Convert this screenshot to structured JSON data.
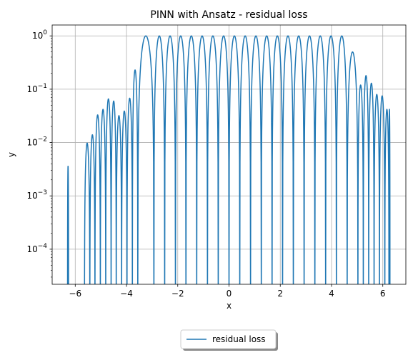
{
  "chart_data": {
    "type": "line",
    "title": "PINN with Ansatz - residual loss",
    "xlabel": "x",
    "ylabel": "y",
    "xlim": [
      -6.9,
      6.9
    ],
    "ylim": [
      2.2e-05,
      1.6
    ],
    "yscale": "log",
    "grid": true,
    "legend_placement": "bottom-center, below plot",
    "x_ticks": [
      -6,
      -4,
      -2,
      0,
      2,
      4,
      6
    ],
    "x_tick_labels": [
      "−6",
      "−4",
      "−2",
      "0",
      "2",
      "4",
      "6"
    ],
    "y_ticks": [
      0.0001,
      0.001,
      0.01,
      0.1,
      1
    ],
    "y_tick_labels": [
      {
        "base": "10",
        "exp": "−4"
      },
      {
        "base": "10",
        "exp": "−3"
      },
      {
        "base": "10",
        "exp": "−2"
      },
      {
        "base": "10",
        "exp": "−1"
      },
      {
        "base": "10",
        "exp": "0"
      }
    ],
    "series": [
      {
        "name": "residual loss",
        "color": "#1f77b4",
        "lobes": [
          {
            "start": -6.3,
            "end": -6.26,
            "peak": 0.0036
          },
          {
            "start": -5.64,
            "end": -5.43,
            "peak": 0.0098
          },
          {
            "start": -5.43,
            "end": -5.23,
            "peak": 0.014
          },
          {
            "start": -5.23,
            "end": -5.02,
            "peak": 0.033
          },
          {
            "start": -5.02,
            "end": -4.81,
            "peak": 0.042
          },
          {
            "start": -4.81,
            "end": -4.6,
            "peak": 0.066
          },
          {
            "start": -4.6,
            "end": -4.4,
            "peak": 0.06
          },
          {
            "start": -4.4,
            "end": -4.19,
            "peak": 0.032
          },
          {
            "start": -4.19,
            "end": -3.98,
            "peak": 0.039
          },
          {
            "start": -3.98,
            "end": -3.77,
            "peak": 0.068
          },
          {
            "start": -3.77,
            "end": -3.56,
            "peak": 0.23
          },
          {
            "start": -3.56,
            "end": -2.93,
            "peak": 1.0
          },
          {
            "start": -2.93,
            "end": -2.51,
            "peak": 1.0
          },
          {
            "start": -2.51,
            "end": -2.09,
            "peak": 1.0
          },
          {
            "start": -2.09,
            "end": -1.68,
            "peak": 1.0
          },
          {
            "start": -1.68,
            "end": -1.26,
            "peak": 1.0
          },
          {
            "start": -1.26,
            "end": -0.84,
            "peak": 1.0
          },
          {
            "start": -0.84,
            "end": -0.42,
            "peak": 1.0
          },
          {
            "start": -0.42,
            "end": 0.0,
            "peak": 1.0
          },
          {
            "start": 0.0,
            "end": 0.42,
            "peak": 1.0
          },
          {
            "start": 0.42,
            "end": 0.84,
            "peak": 1.0
          },
          {
            "start": 0.84,
            "end": 1.26,
            "peak": 1.0
          },
          {
            "start": 1.26,
            "end": 1.68,
            "peak": 1.0
          },
          {
            "start": 1.68,
            "end": 2.09,
            "peak": 1.0
          },
          {
            "start": 2.09,
            "end": 2.51,
            "peak": 1.0
          },
          {
            "start": 2.51,
            "end": 2.93,
            "peak": 1.0
          },
          {
            "start": 2.93,
            "end": 3.35,
            "peak": 1.0
          },
          {
            "start": 3.35,
            "end": 3.77,
            "peak": 1.0
          },
          {
            "start": 3.77,
            "end": 4.19,
            "peak": 1.0
          },
          {
            "start": 4.19,
            "end": 4.61,
            "peak": 1.0
          },
          {
            "start": 4.61,
            "end": 5.03,
            "peak": 0.5
          },
          {
            "start": 5.03,
            "end": 5.24,
            "peak": 0.12
          },
          {
            "start": 5.24,
            "end": 5.45,
            "peak": 0.18
          },
          {
            "start": 5.45,
            "end": 5.66,
            "peak": 0.13
          },
          {
            "start": 5.66,
            "end": 5.87,
            "peak": 0.08
          },
          {
            "start": 5.87,
            "end": 6.08,
            "peak": 0.075
          },
          {
            "start": 6.08,
            "end": 6.24,
            "peak": 0.042
          },
          {
            "start": 6.24,
            "end": 6.28,
            "peak": 0.042
          }
        ]
      }
    ]
  }
}
